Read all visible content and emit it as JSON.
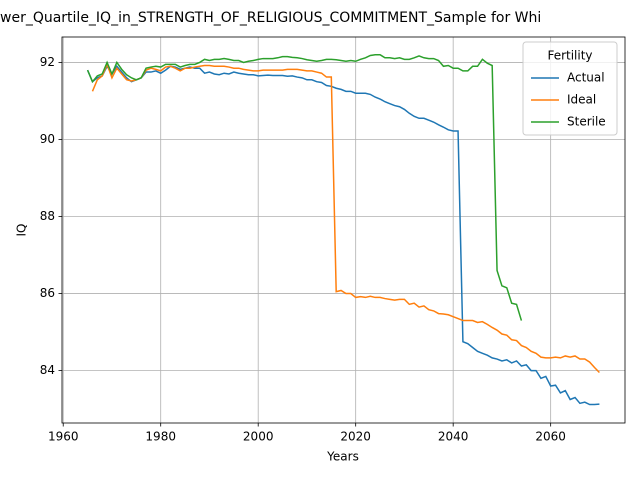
{
  "chart_data": {
    "type": "line",
    "title": "wer_Quartile_IQ_in_STRENGTH_OF_RELIGIOUS_COMMITMENT_Sample for Whi",
    "xlabel": "Years",
    "ylabel": "IQ",
    "legend_title": "Fertility",
    "legend": "upper right",
    "grid": true,
    "xlim": [
      1959.75,
      2075.25
    ],
    "xticks": [
      1960,
      1980,
      2000,
      2020,
      2040,
      2060
    ],
    "ylim": [
      82.64,
      92.66
    ],
    "yticks": [
      84,
      86,
      88,
      90,
      92
    ],
    "x": [
      1965,
      1966,
      1967,
      1968,
      1969,
      1970,
      1971,
      1972,
      1973,
      1974,
      1975,
      1976,
      1977,
      1978,
      1979,
      1980,
      1981,
      1982,
      1983,
      1984,
      1985,
      1986,
      1987,
      1988,
      1989,
      1990,
      1991,
      1992,
      1993,
      1994,
      1995,
      1996,
      1997,
      1998,
      1999,
      2000,
      2001,
      2002,
      2003,
      2004,
      2005,
      2006,
      2007,
      2008,
      2009,
      2010,
      2011,
      2012,
      2013,
      2014,
      2015,
      2016,
      2017,
      2018,
      2019,
      2020,
      2021,
      2022,
      2023,
      2024,
      2025,
      2026,
      2027,
      2028,
      2029,
      2030,
      2031,
      2032,
      2033,
      2034,
      2035,
      2036,
      2037,
      2038,
      2039,
      2040,
      2041,
      2042,
      2043,
      2044,
      2045,
      2046,
      2047,
      2048,
      2049,
      2050,
      2051,
      2052,
      2053,
      2054,
      2055,
      2056,
      2057,
      2058,
      2059,
      2060,
      2061,
      2062,
      2063,
      2064,
      2065,
      2066,
      2067,
      2068,
      2069,
      2070
    ],
    "series": [
      {
        "name": "Actual",
        "color": "#1f77b4",
        "values": [
          91.8,
          91.5,
          91.6,
          91.65,
          91.9,
          91.7,
          91.9,
          91.75,
          91.6,
          91.5,
          91.55,
          91.6,
          91.75,
          91.75,
          91.78,
          91.72,
          91.8,
          91.9,
          91.88,
          91.82,
          91.85,
          91.88,
          91.85,
          91.85,
          91.72,
          91.75,
          91.7,
          91.68,
          91.72,
          91.7,
          91.75,
          91.72,
          91.7,
          91.68,
          91.68,
          91.65,
          91.66,
          91.67,
          91.66,
          91.66,
          91.66,
          91.64,
          91.65,
          91.62,
          91.6,
          91.55,
          91.55,
          91.5,
          91.48,
          91.4,
          91.38,
          91.33,
          91.3,
          91.25,
          91.25,
          91.2,
          91.2,
          91.2,
          91.17,
          91.1,
          91.05,
          90.98,
          90.93,
          90.88,
          90.85,
          90.78,
          90.68,
          90.6,
          90.55,
          90.55,
          90.5,
          90.45,
          90.38,
          90.32,
          90.25,
          90.22,
          90.22,
          84.75,
          84.7,
          84.6,
          84.5,
          84.45,
          84.4,
          84.33,
          84.3,
          84.25,
          84.28,
          84.2,
          84.25,
          84.12,
          84.15,
          84.0,
          84.0,
          83.8,
          83.85,
          83.6,
          83.62,
          83.42,
          83.48,
          83.25,
          83.3,
          83.15,
          83.18,
          83.12,
          83.12,
          83.13
        ]
      },
      {
        "name": "Ideal",
        "color": "#ff7f0e",
        "values": [
          null,
          91.25,
          91.55,
          91.65,
          91.95,
          91.6,
          91.85,
          91.7,
          91.55,
          91.52,
          91.55,
          91.6,
          91.8,
          91.85,
          91.82,
          91.78,
          91.88,
          91.9,
          91.85,
          91.78,
          91.85,
          91.85,
          91.88,
          91.9,
          91.92,
          91.92,
          91.9,
          91.9,
          91.9,
          91.88,
          91.85,
          91.85,
          91.82,
          91.8,
          91.78,
          91.78,
          91.8,
          91.8,
          91.8,
          91.8,
          91.8,
          91.82,
          91.82,
          91.82,
          91.8,
          91.78,
          91.78,
          91.75,
          91.72,
          91.62,
          91.62,
          86.05,
          86.08,
          86.0,
          86.0,
          85.9,
          85.92,
          85.9,
          85.93,
          85.9,
          85.9,
          85.87,
          85.85,
          85.83,
          85.85,
          85.85,
          85.72,
          85.75,
          85.65,
          85.68,
          85.58,
          85.55,
          85.48,
          85.47,
          85.45,
          85.4,
          85.35,
          85.3,
          85.3,
          85.3,
          85.25,
          85.27,
          85.2,
          85.12,
          85.05,
          84.95,
          84.92,
          84.8,
          84.78,
          84.65,
          84.6,
          84.5,
          84.45,
          84.35,
          84.33,
          84.33,
          84.35,
          84.33,
          84.38,
          84.35,
          84.38,
          84.3,
          84.3,
          84.22,
          84.08,
          83.95
        ]
      },
      {
        "name": "Sterile",
        "color": "#2ca02c",
        "values": [
          91.8,
          91.5,
          91.65,
          91.7,
          92.0,
          91.7,
          92.0,
          91.82,
          91.68,
          91.6,
          91.55,
          91.6,
          91.85,
          91.88,
          91.9,
          91.88,
          91.95,
          91.95,
          91.95,
          91.88,
          91.92,
          91.95,
          91.95,
          92.0,
          92.08,
          92.05,
          92.08,
          92.08,
          92.1,
          92.08,
          92.05,
          92.05,
          92.0,
          92.03,
          92.05,
          92.08,
          92.1,
          92.1,
          92.1,
          92.12,
          92.15,
          92.15,
          92.13,
          92.12,
          92.1,
          92.07,
          92.05,
          92.03,
          92.05,
          92.08,
          92.08,
          92.07,
          92.05,
          92.03,
          92.05,
          92.03,
          92.08,
          92.12,
          92.18,
          92.2,
          92.2,
          92.12,
          92.12,
          92.1,
          92.12,
          92.08,
          92.08,
          92.12,
          92.17,
          92.12,
          92.1,
          92.1,
          92.05,
          91.9,
          91.92,
          91.85,
          91.85,
          91.78,
          91.78,
          91.9,
          91.9,
          92.08,
          91.98,
          91.92,
          86.6,
          86.2,
          86.15,
          85.75,
          85.72,
          85.3,
          null,
          null,
          null,
          null,
          null,
          null,
          null,
          null,
          null,
          null,
          null,
          null,
          null,
          null,
          null,
          null
        ]
      }
    ]
  }
}
